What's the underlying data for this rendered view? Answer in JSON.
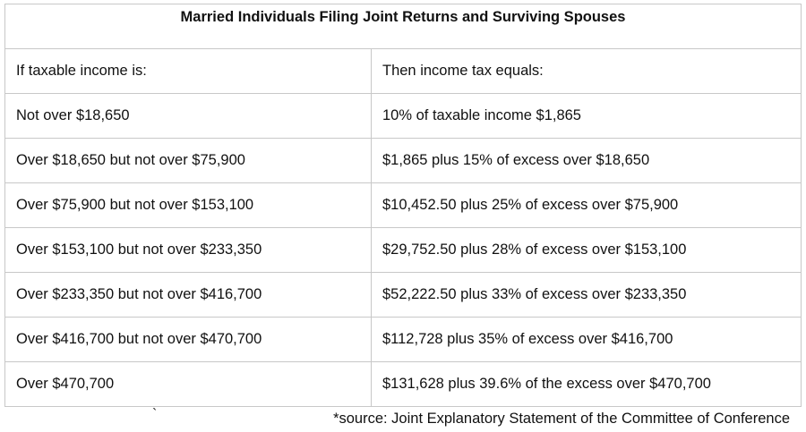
{
  "table": {
    "title": "Married Individuals Filing Joint Returns and Surviving Spouses",
    "headers": [
      "If taxable income is:",
      "Then income tax equals:"
    ],
    "rows": [
      [
        "Not over $18,650",
        "10% of taxable income  $1,865"
      ],
      [
        "Over $18,650 but not over $75,900",
        "$1,865 plus 15% of excess over $18,650"
      ],
      [
        "Over $75,900 but not over $153,100",
        "$10,452.50 plus 25% of excess over $75,900"
      ],
      [
        "Over $153,100 but not over $233,350",
        "$29,752.50 plus 28% of excess over $153,100"
      ],
      [
        "Over $233,350 but not over $416,700",
        "$52,222.50 plus 33% of excess over $233,350"
      ],
      [
        "Over $416,700 but not over $470,700",
        "$112,728 plus 35% of excess over $416,700"
      ],
      [
        "Over $470,700",
        "$131,628 plus 39.6% of the excess over $470,700"
      ]
    ]
  },
  "stray_mark": "`",
  "source_note": "*source: Joint Explanatory Statement of the Committee of Conference"
}
